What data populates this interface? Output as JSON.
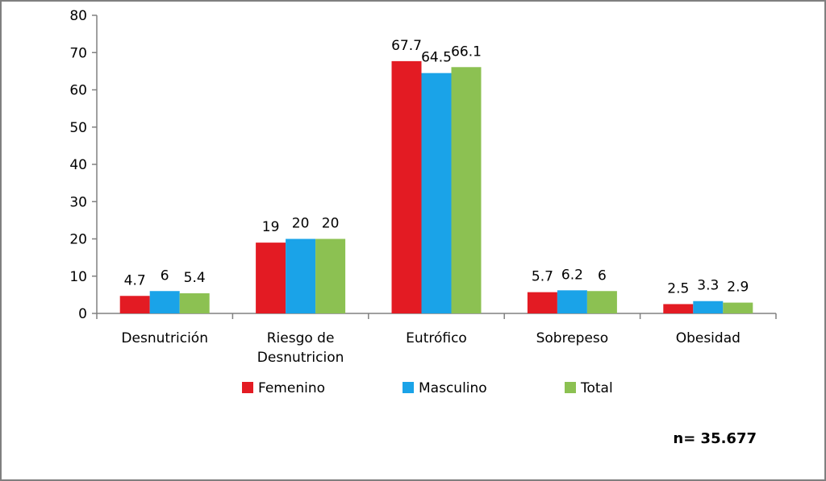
{
  "chart_data": {
    "type": "bar",
    "categories": [
      "Desnutrición",
      "Riesgo de Desnutricion",
      "Eutrófico",
      "Sobrepeso",
      "Obesidad"
    ],
    "category_lines": [
      [
        "Desnutrición"
      ],
      [
        "Riesgo de",
        "Desnutricion"
      ],
      [
        "Eutrófico"
      ],
      [
        "Sobrepeso"
      ],
      [
        "Obesidad"
      ]
    ],
    "series": [
      {
        "name": "Femenino",
        "color": "#e31b23",
        "values": [
          4.7,
          19,
          67.7,
          5.7,
          2.5
        ]
      },
      {
        "name": "Masculino",
        "color": "#1aa3e8",
        "values": [
          6,
          20,
          64.5,
          6.2,
          3.3
        ]
      },
      {
        "name": "Total",
        "color": "#8cc152",
        "values": [
          5.4,
          20,
          66.1,
          6,
          2.9
        ]
      }
    ],
    "ylim": [
      0,
      80
    ],
    "yticks": [
      0,
      10,
      20,
      30,
      40,
      50,
      60,
      70,
      80
    ],
    "legend_position": "bottom",
    "grid": false,
    "annotation": "n= 35.677"
  }
}
